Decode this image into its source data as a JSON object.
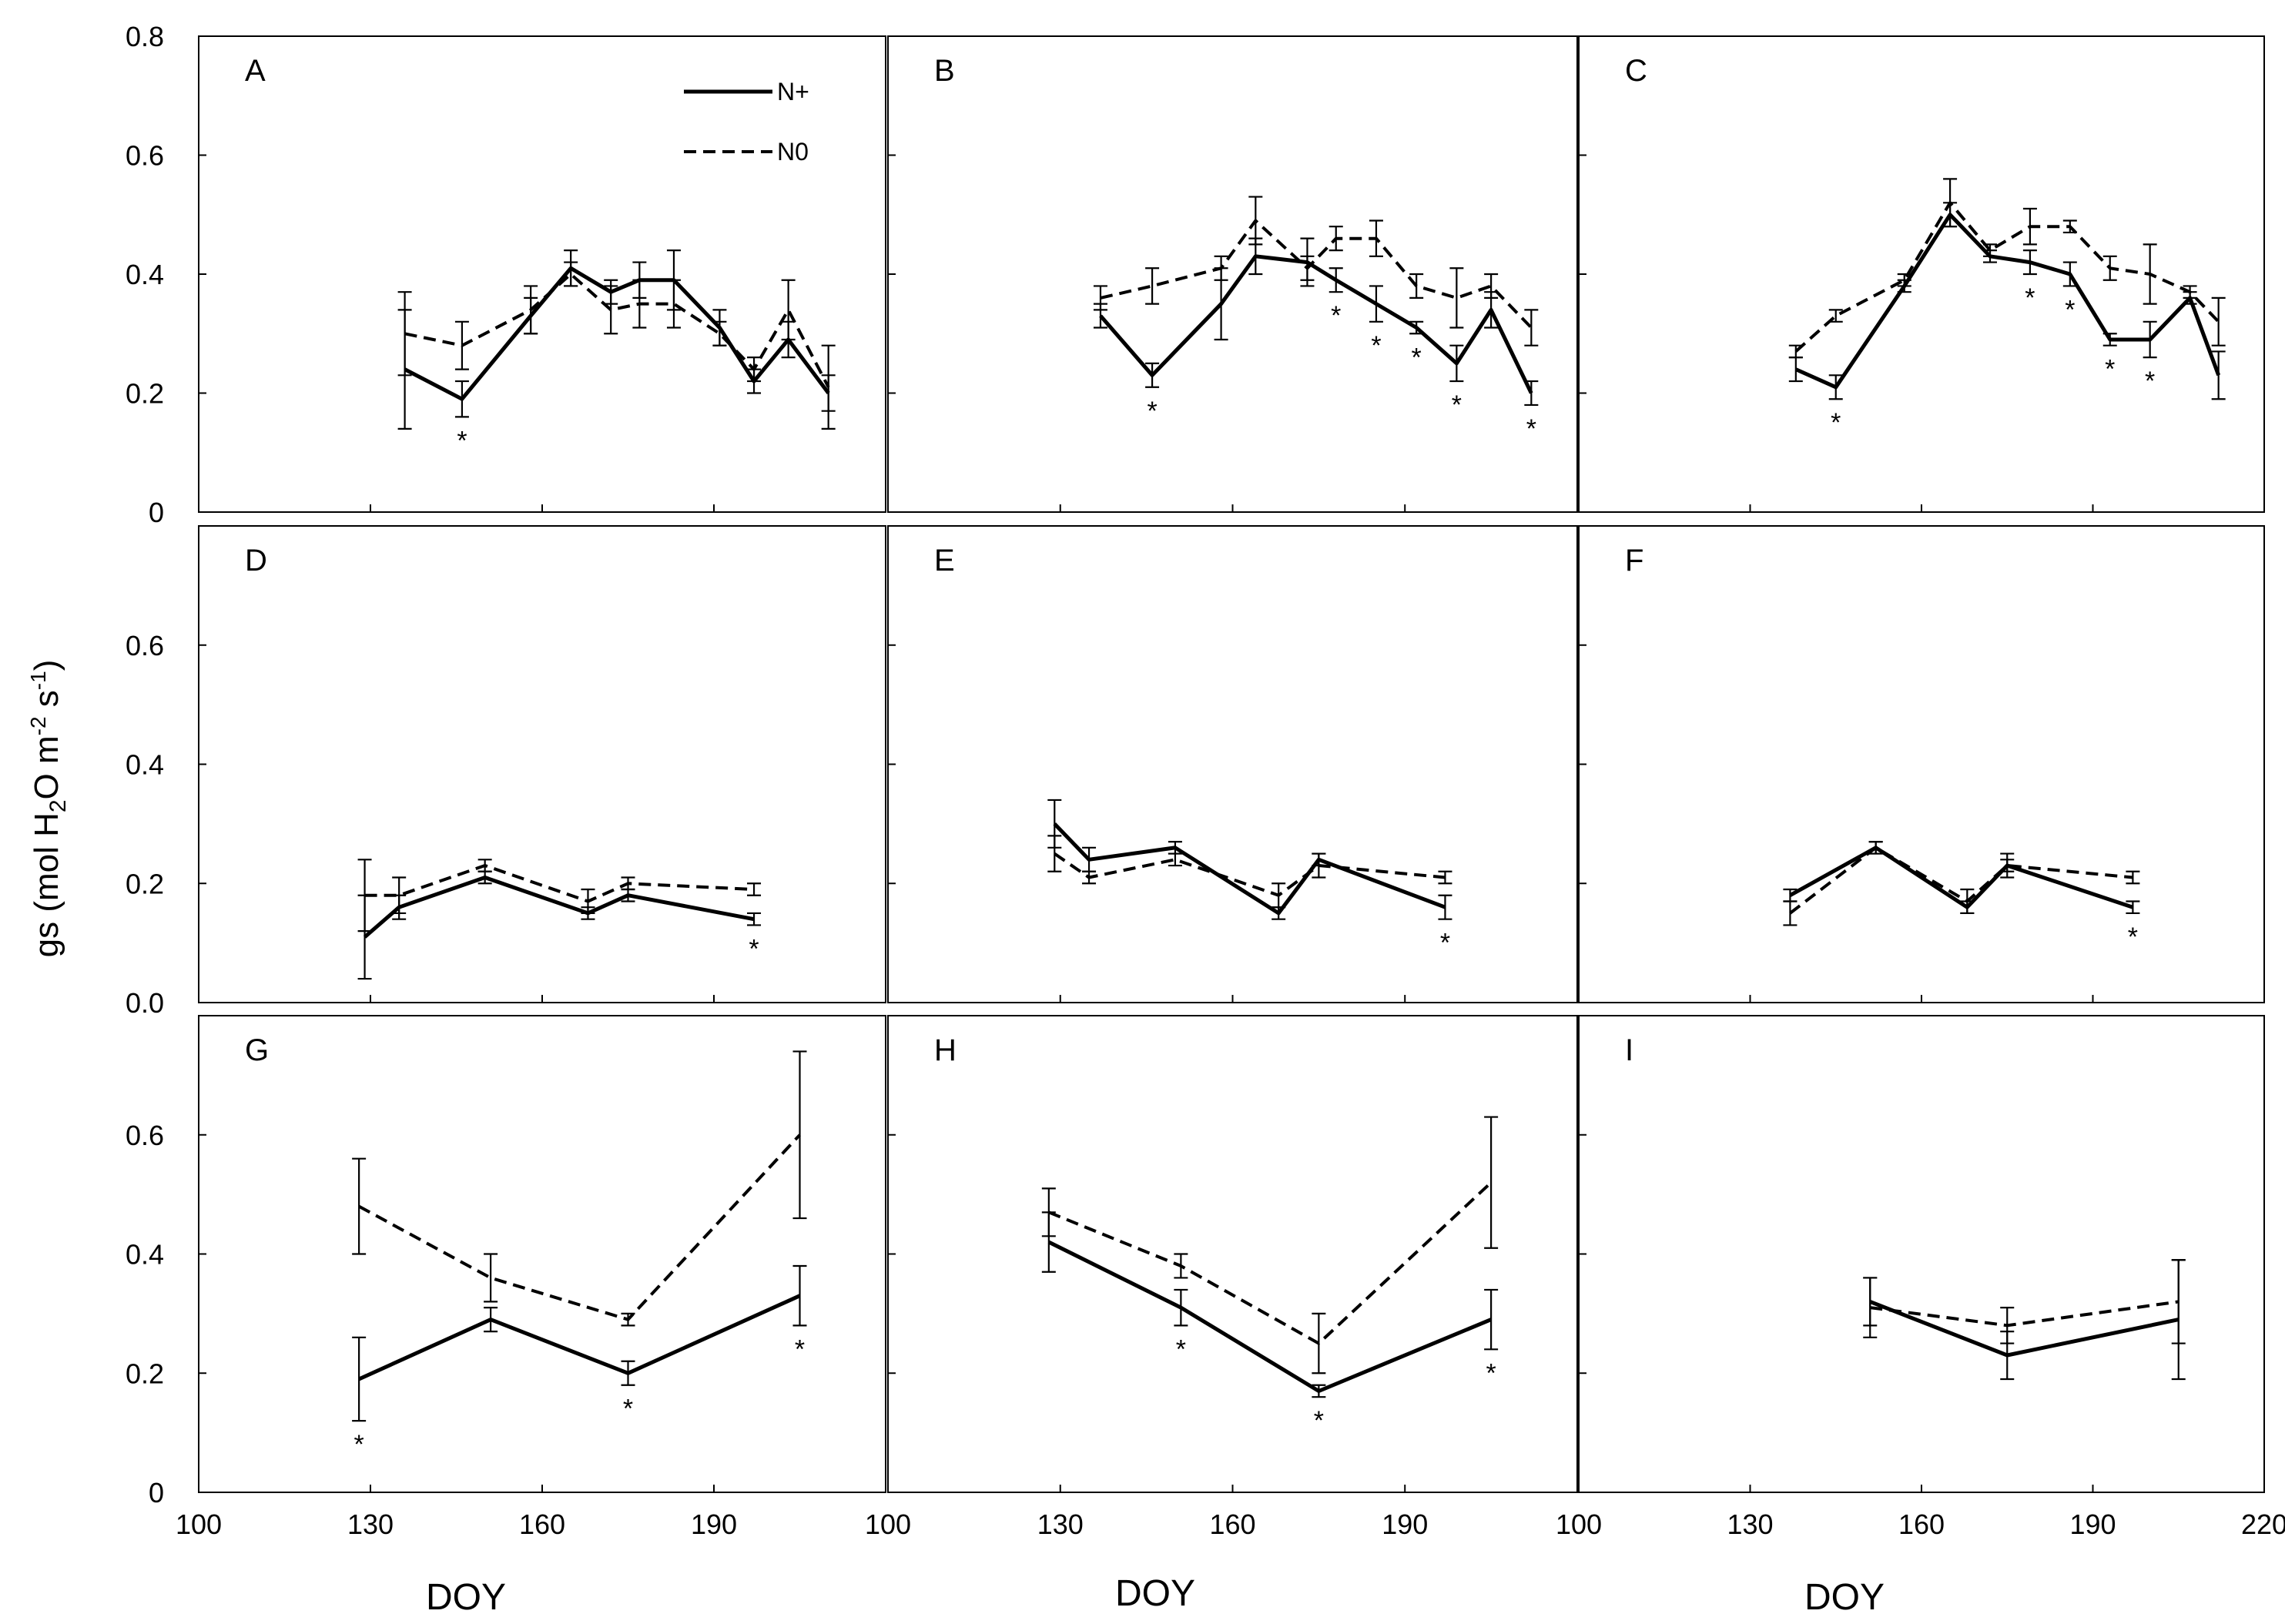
{
  "chart_data": {
    "type": "line",
    "title": "",
    "ylabel_main": "gs (mol H",
    "ylabel_sub": "2",
    "ylabel_mid": "O m",
    "ylabel_sup1": "-2",
    "ylabel_mid2": " s",
    "ylabel_sup2": "-1",
    "ylabel_close": ")",
    "xlabel": "DOY",
    "xlim": [
      100,
      220
    ],
    "x_ticks": [
      100,
      130,
      160,
      190,
      220
    ],
    "x_tick_labels": [
      "100",
      "130",
      "160",
      "190",
      "220"
    ],
    "x_tick_labels_panel3": [
      "100",
      "130",
      "160",
      "190",
      "220"
    ],
    "y_ticks": [
      0,
      0.2,
      0.4,
      0.6,
      0.8
    ],
    "y_tick_labels_row1": [
      "0",
      "0.2",
      "0.4",
      "0.6",
      "0.8"
    ],
    "y_tick_labels_row2": [
      "0.0",
      "0.2",
      "0.4",
      "0.6"
    ],
    "y_tick_labels_row3": [
      "0",
      "0.2",
      "0.4",
      "0.6"
    ],
    "legend": {
      "n_plus": "N+",
      "n_zero": "N0",
      "position": "top-right of panel A"
    },
    "significance_marker": "*",
    "panels": [
      {
        "label": "A",
        "ylim": [
          0,
          0.8
        ],
        "n_plus": {
          "x": [
            136,
            146,
            158,
            165,
            172,
            177,
            183,
            191,
            197,
            203,
            210
          ],
          "y": [
            0.24,
            0.19,
            0.33,
            0.41,
            0.37,
            0.39,
            0.39,
            0.31,
            0.22,
            0.29,
            0.2
          ],
          "err": [
            0.1,
            0.03,
            0.03,
            0.03,
            0.02,
            0.03,
            0.05,
            0.03,
            0.02,
            0.03,
            0.03
          ]
        },
        "n_zero": {
          "x": [
            136,
            146,
            158,
            165,
            172,
            177,
            183,
            191,
            197,
            203,
            210
          ],
          "y": [
            0.3,
            0.28,
            0.34,
            0.4,
            0.34,
            0.35,
            0.35,
            0.3,
            0.24,
            0.34,
            0.21
          ],
          "err": [
            0.07,
            0.04,
            0.04,
            0.02,
            0.04,
            0.04,
            0.04,
            0.02,
            0.02,
            0.05,
            0.07
          ]
        },
        "stars": [
          146
        ]
      },
      {
        "label": "B",
        "ylim": [
          0,
          0.8
        ],
        "n_plus": {
          "x": [
            137,
            146,
            158,
            164,
            173,
            178,
            185,
            192,
            199,
            205,
            212
          ],
          "y": [
            0.33,
            0.23,
            0.35,
            0.43,
            0.42,
            0.39,
            0.35,
            0.31,
            0.25,
            0.34,
            0.2
          ],
          "err": [
            0.02,
            0.02,
            0.06,
            0.03,
            0.04,
            0.02,
            0.03,
            0.01,
            0.03,
            0.03,
            0.02
          ]
        },
        "n_zero": {
          "x": [
            137,
            146,
            158,
            164,
            173,
            178,
            185,
            192,
            199,
            205,
            212
          ],
          "y": [
            0.36,
            0.38,
            0.41,
            0.49,
            0.41,
            0.46,
            0.46,
            0.38,
            0.36,
            0.38,
            0.31
          ],
          "err": [
            0.02,
            0.03,
            0.02,
            0.04,
            0.02,
            0.02,
            0.03,
            0.02,
            0.05,
            0.02,
            0.03
          ]
        },
        "stars": [
          146,
          178,
          185,
          192,
          199,
          212
        ]
      },
      {
        "label": "C",
        "ylim": [
          0,
          0.8
        ],
        "n_plus": {
          "x": [
            138,
            145,
            157,
            165,
            172,
            179,
            186,
            193,
            200,
            207,
            212
          ],
          "y": [
            0.24,
            0.21,
            0.38,
            0.5,
            0.43,
            0.42,
            0.4,
            0.29,
            0.29,
            0.36,
            0.23
          ],
          "err": [
            0.02,
            0.02,
            0.01,
            0.02,
            0.01,
            0.02,
            0.02,
            0.01,
            0.03,
            0.01,
            0.04
          ]
        },
        "n_zero": {
          "x": [
            138,
            145,
            157,
            165,
            172,
            179,
            186,
            193,
            200,
            207,
            212
          ],
          "y": [
            0.27,
            0.33,
            0.39,
            0.52,
            0.44,
            0.48,
            0.48,
            0.41,
            0.4,
            0.37,
            0.32
          ],
          "err": [
            0.01,
            0.01,
            0.01,
            0.04,
            0.01,
            0.03,
            0.01,
            0.02,
            0.05,
            0.01,
            0.04
          ]
        },
        "stars": [
          145,
          179,
          186,
          193,
          200
        ]
      },
      {
        "label": "D",
        "ylim": [
          0,
          0.8
        ],
        "n_plus": {
          "x": [
            129,
            135,
            150,
            168,
            175,
            197
          ],
          "y": [
            0.11,
            0.16,
            0.21,
            0.15,
            0.18,
            0.14
          ],
          "err": [
            0.07,
            0.02,
            0.01,
            0.01,
            0.01,
            0.01
          ]
        },
        "n_zero": {
          "x": [
            129,
            135,
            150,
            168,
            175,
            197
          ],
          "y": [
            0.18,
            0.18,
            0.23,
            0.17,
            0.2,
            0.19
          ],
          "err": [
            0.06,
            0.03,
            0.01,
            0.02,
            0.01,
            0.01
          ]
        },
        "stars": [
          197
        ]
      },
      {
        "label": "E",
        "ylim": [
          0,
          0.8
        ],
        "n_plus": {
          "x": [
            129,
            135,
            150,
            168,
            175,
            197
          ],
          "y": [
            0.3,
            0.24,
            0.26,
            0.15,
            0.24,
            0.16
          ],
          "err": [
            0.04,
            0.02,
            0.01,
            0.01,
            0.01,
            0.02
          ]
        },
        "n_zero": {
          "x": [
            129,
            135,
            150,
            168,
            175,
            197
          ],
          "y": [
            0.25,
            0.21,
            0.24,
            0.18,
            0.23,
            0.21
          ],
          "err": [
            0.03,
            0.01,
            0.01,
            0.02,
            0.02,
            0.01
          ]
        },
        "stars": [
          197
        ]
      },
      {
        "label": "F",
        "ylim": [
          0,
          0.8
        ],
        "n_plus": {
          "x": [
            137,
            152,
            168,
            175,
            197
          ],
          "y": [
            0.18,
            0.26,
            0.16,
            0.23,
            0.16
          ],
          "err": [
            0.01,
            0.01,
            0.01,
            0.01,
            0.01
          ]
        },
        "n_zero": {
          "x": [
            137,
            152,
            168,
            175,
            197
          ],
          "y": [
            0.15,
            0.26,
            0.17,
            0.23,
            0.21
          ],
          "err": [
            0.02,
            0.01,
            0.02,
            0.02,
            0.01
          ]
        },
        "stars": [
          197
        ]
      },
      {
        "label": "G",
        "ylim": [
          0,
          0.8
        ],
        "n_plus": {
          "x": [
            128,
            151,
            175,
            205
          ],
          "y": [
            0.19,
            0.29,
            0.2,
            0.33
          ],
          "err": [
            0.07,
            0.02,
            0.02,
            0.05
          ]
        },
        "n_zero": {
          "x": [
            128,
            151,
            175,
            205
          ],
          "y": [
            0.48,
            0.36,
            0.29,
            0.6
          ],
          "err": [
            0.08,
            0.04,
            0.01,
            0.14
          ]
        },
        "stars": [
          128,
          175,
          205
        ]
      },
      {
        "label": "H",
        "ylim": [
          0,
          0.8
        ],
        "n_plus": {
          "x": [
            128,
            151,
            175,
            205
          ],
          "y": [
            0.42,
            0.31,
            0.17,
            0.29
          ],
          "err": [
            0.05,
            0.03,
            0.01,
            0.05
          ]
        },
        "n_zero": {
          "x": [
            128,
            151,
            175,
            205
          ],
          "y": [
            0.47,
            0.38,
            0.25,
            0.52
          ],
          "err": [
            0.04,
            0.02,
            0.05,
            0.11
          ]
        },
        "stars": [
          151,
          175,
          205
        ]
      },
      {
        "label": "I",
        "ylim": [
          0,
          0.8
        ],
        "n_plus": {
          "x": [
            151,
            175,
            205
          ],
          "y": [
            0.32,
            0.23,
            0.29
          ],
          "err": [
            0.04,
            0.04,
            0.1
          ]
        },
        "n_zero": {
          "x": [
            151,
            175,
            205
          ],
          "y": [
            0.31,
            0.28,
            0.32
          ],
          "err": [
            0.05,
            0.03,
            0.07
          ]
        },
        "stars": []
      }
    ]
  }
}
